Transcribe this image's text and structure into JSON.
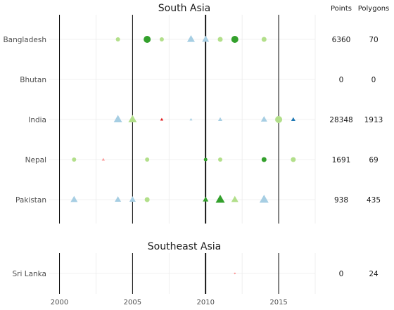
{
  "chart_data": {
    "type": "scatter",
    "column_headers": {
      "points": "Points",
      "polygons": "Polygons"
    },
    "x_ticks": [
      2000,
      2005,
      2010,
      2015
    ],
    "xlim": [
      1999.3,
      2017.5
    ],
    "reference_years": [
      2000,
      2005,
      2010,
      2015
    ],
    "major_reference_year": 2010,
    "grid": true,
    "colors": {
      "light_blue": "#a6cee3",
      "dark_blue": "#1f78b4",
      "light_green": "#b2df8a",
      "dark_green": "#33a02c",
      "pink": "#fb9a99",
      "red": "#e31a1c"
    },
    "panels": [
      {
        "title": "South Asia",
        "rows": [
          {
            "label": "Bangladesh",
            "points": "6360",
            "polygons": "70",
            "marks": [
              {
                "x": 2004,
                "shape": "circle",
                "color": "light_green",
                "size": 3
              },
              {
                "x": 2006,
                "shape": "circle",
                "color": "dark_green",
                "size": 5
              },
              {
                "x": 2007,
                "shape": "circle",
                "color": "light_green",
                "size": 3
              },
              {
                "x": 2009,
                "shape": "triangle",
                "color": "light_blue",
                "size": 5.5
              },
              {
                "x": 2010,
                "shape": "triangle",
                "color": "light_blue",
                "size": 5
              },
              {
                "x": 2011,
                "shape": "circle",
                "color": "light_green",
                "size": 3.5
              },
              {
                "x": 2012,
                "shape": "circle",
                "color": "dark_green",
                "size": 5
              },
              {
                "x": 2014,
                "shape": "circle",
                "color": "light_green",
                "size": 3.5
              }
            ]
          },
          {
            "label": "Bhutan",
            "points": "0",
            "polygons": "0",
            "marks": []
          },
          {
            "label": "India",
            "points": "28348",
            "polygons": "1913",
            "marks": [
              {
                "x": 2004,
                "shape": "triangle",
                "color": "light_blue",
                "size": 6
              },
              {
                "x": 2005,
                "shape": "triangle",
                "color": "light_green",
                "size": 6
              },
              {
                "x": 2007,
                "shape": "triangle",
                "color": "red",
                "size": 2.2
              },
              {
                "x": 2009,
                "shape": "triangle",
                "color": "light_blue",
                "size": 2
              },
              {
                "x": 2011,
                "shape": "triangle",
                "color": "light_blue",
                "size": 3
              },
              {
                "x": 2014,
                "shape": "triangle",
                "color": "light_blue",
                "size": 4.5
              },
              {
                "x": 2015,
                "shape": "circle",
                "color": "light_green",
                "size": 5
              },
              {
                "x": 2016,
                "shape": "triangle",
                "color": "dark_blue",
                "size": 3
              }
            ]
          },
          {
            "label": "Nepal",
            "points": "1691",
            "polygons": "69",
            "marks": [
              {
                "x": 2001,
                "shape": "circle",
                "color": "light_green",
                "size": 3
              },
              {
                "x": 2003,
                "shape": "triangle",
                "color": "pink",
                "size": 2.2
              },
              {
                "x": 2006,
                "shape": "circle",
                "color": "light_green",
                "size": 3
              },
              {
                "x": 2010,
                "shape": "circle",
                "color": "dark_green",
                "size": 2.5
              },
              {
                "x": 2011,
                "shape": "circle",
                "color": "light_green",
                "size": 3
              },
              {
                "x": 2014,
                "shape": "circle",
                "color": "dark_green",
                "size": 3.5
              },
              {
                "x": 2016,
                "shape": "circle",
                "color": "light_green",
                "size": 3.5
              }
            ]
          },
          {
            "label": "Pakistan",
            "points": "938",
            "polygons": "435",
            "marks": [
              {
                "x": 2001,
                "shape": "triangle",
                "color": "light_blue",
                "size": 5
              },
              {
                "x": 2004,
                "shape": "triangle",
                "color": "light_blue",
                "size": 4.5
              },
              {
                "x": 2005,
                "shape": "triangle",
                "color": "light_blue",
                "size": 4.5
              },
              {
                "x": 2006,
                "shape": "circle",
                "color": "light_green",
                "size": 3.5
              },
              {
                "x": 2010,
                "shape": "triangle",
                "color": "dark_green",
                "size": 4
              },
              {
                "x": 2011,
                "shape": "triangle",
                "color": "dark_green",
                "size": 6.5
              },
              {
                "x": 2012,
                "shape": "triangle",
                "color": "light_green",
                "size": 5
              },
              {
                "x": 2014,
                "shape": "triangle",
                "color": "light_blue",
                "size": 6.5
              }
            ]
          }
        ]
      },
      {
        "title": "Southeast Asia",
        "rows": [
          {
            "label": "Sri Lanka",
            "points": "0",
            "polygons": "24",
            "marks": [
              {
                "x": 2012,
                "shape": "circle",
                "color": "pink",
                "size": 1.2
              }
            ]
          }
        ]
      }
    ]
  }
}
